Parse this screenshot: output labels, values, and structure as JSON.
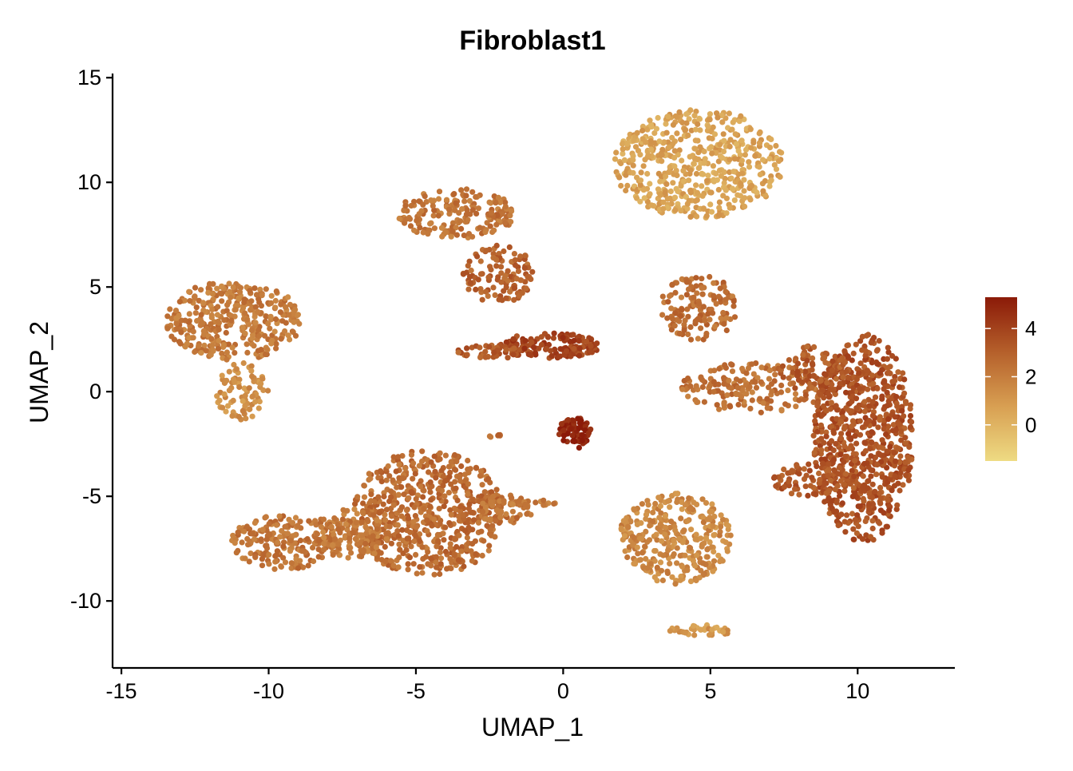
{
  "chart_data": {
    "type": "scatter",
    "title": "Fibroblast1",
    "xlabel": "UMAP_1",
    "ylabel": "UMAP_2",
    "xlim": [
      -15.3,
      13.3
    ],
    "ylim": [
      -13.2,
      15.2
    ],
    "x_ticks": [
      -15,
      -10,
      -5,
      0,
      5,
      10
    ],
    "y_ticks": [
      -10,
      -5,
      0,
      5,
      10,
      15
    ],
    "x_tick_labels": [
      "-15",
      "-10",
      "-5",
      "0",
      "5",
      "10"
    ],
    "y_tick_labels": [
      "-10",
      "-5",
      "0",
      "5",
      "10",
      "15"
    ],
    "grid": false,
    "legend": {
      "type": "colorbar",
      "placement": "right",
      "range": [
        -1.5,
        5.3
      ],
      "ticks": [
        0,
        2,
        4
      ],
      "tick_labels": [
        "0",
        "2",
        "4"
      ],
      "colors": [
        "#EEDB83",
        "#D89F52",
        "#B5602B",
        "#8B1A08"
      ]
    },
    "clusters": [
      {
        "cx": 4.6,
        "cy": 10.9,
        "rx": 2.9,
        "ry": 2.6,
        "value": 0.6,
        "n": 520
      },
      {
        "cx": -3.6,
        "cy": 8.5,
        "rx": 2.0,
        "ry": 1.2,
        "value": 2.3,
        "n": 180
      },
      {
        "cx": -2.2,
        "cy": 5.6,
        "rx": 1.2,
        "ry": 1.4,
        "value": 2.9,
        "n": 120
      },
      {
        "cx": -0.5,
        "cy": 2.2,
        "rx": 1.8,
        "ry": 0.6,
        "value": 4.0,
        "n": 150
      },
      {
        "cx": -2.5,
        "cy": 1.9,
        "rx": 1.1,
        "ry": 0.35,
        "value": 3.2,
        "n": 40
      },
      {
        "cx": 0.4,
        "cy": -2.0,
        "rx": 0.6,
        "ry": 0.75,
        "value": 5.0,
        "n": 70
      },
      {
        "cx": -11.2,
        "cy": 3.4,
        "rx": 2.3,
        "ry": 1.9,
        "value": 2.1,
        "n": 360
      },
      {
        "cx": -10.9,
        "cy": 0.0,
        "rx": 0.9,
        "ry": 1.4,
        "value": 1.3,
        "n": 80
      },
      {
        "cx": 4.6,
        "cy": 4.0,
        "rx": 1.3,
        "ry": 1.6,
        "value": 2.5,
        "n": 140
      },
      {
        "cx": 6.5,
        "cy": 0.2,
        "rx": 2.5,
        "ry": 1.2,
        "value": 2.4,
        "n": 170
      },
      {
        "cx": 10.2,
        "cy": -2.2,
        "rx": 1.7,
        "ry": 5.0,
        "value": 3.5,
        "n": 700
      },
      {
        "cx": 8.5,
        "cy": 1.0,
        "rx": 1.2,
        "ry": 1.2,
        "value": 3.2,
        "n": 100
      },
      {
        "cx": 8.5,
        "cy": -4.2,
        "rx": 1.4,
        "ry": 0.8,
        "value": 3.3,
        "n": 90
      },
      {
        "cx": -9.5,
        "cy": -7.2,
        "rx": 1.8,
        "ry": 1.3,
        "value": 2.3,
        "n": 200
      },
      {
        "cx": -4.6,
        "cy": -5.8,
        "rx": 2.6,
        "ry": 3.0,
        "value": 2.6,
        "n": 600
      },
      {
        "cx": -7.2,
        "cy": -6.8,
        "rx": 1.3,
        "ry": 1.2,
        "value": 2.1,
        "n": 150
      },
      {
        "cx": -2.0,
        "cy": -5.6,
        "rx": 1.0,
        "ry": 0.7,
        "value": 2.4,
        "n": 60
      },
      {
        "cx": -1.2,
        "cy": -5.3,
        "rx": 1.0,
        "ry": 0.15,
        "value": 2.2,
        "n": 20
      },
      {
        "cx": 3.8,
        "cy": -7.0,
        "rx": 1.9,
        "ry": 2.2,
        "value": 1.6,
        "n": 320
      },
      {
        "cx": 4.7,
        "cy": -11.4,
        "rx": 1.1,
        "ry": 0.25,
        "value": 1.0,
        "n": 40
      },
      {
        "cx": -2.3,
        "cy": -2.1,
        "rx": 0.25,
        "ry": 0.1,
        "value": 2.5,
        "n": 6
      },
      {
        "cx": -2.3,
        "cy": 8.5,
        "rx": 0.35,
        "ry": 0.15,
        "value": 2.8,
        "n": 10
      }
    ]
  }
}
